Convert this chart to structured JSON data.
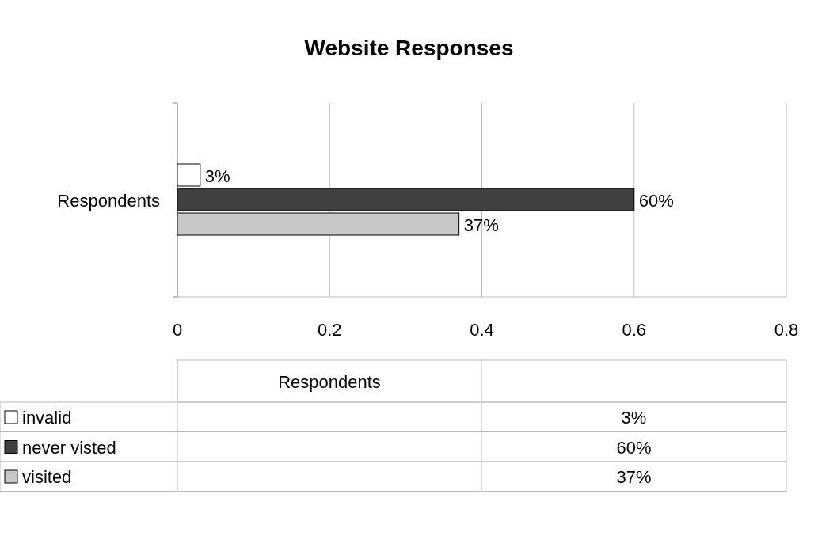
{
  "chart_data": {
    "type": "bar",
    "title": "Website Responses",
    "orientation": "horizontal",
    "categories": [
      "Respondents"
    ],
    "series": [
      {
        "name": "invalid",
        "color": "#ffffff",
        "values": [
          0.03
        ],
        "value_labels": [
          "3%"
        ]
      },
      {
        "name": "never visted",
        "color": "#404040",
        "values": [
          0.6
        ],
        "value_labels": [
          "60%"
        ]
      },
      {
        "name": "visited",
        "color": "#c8c8c8",
        "values": [
          0.37
        ],
        "value_labels": [
          "37%"
        ]
      }
    ],
    "xlim": [
      0,
      0.8
    ],
    "xticks": [
      0,
      0.2,
      0.4,
      0.6,
      0.8
    ],
    "grid": "x",
    "legend": "bottom"
  }
}
